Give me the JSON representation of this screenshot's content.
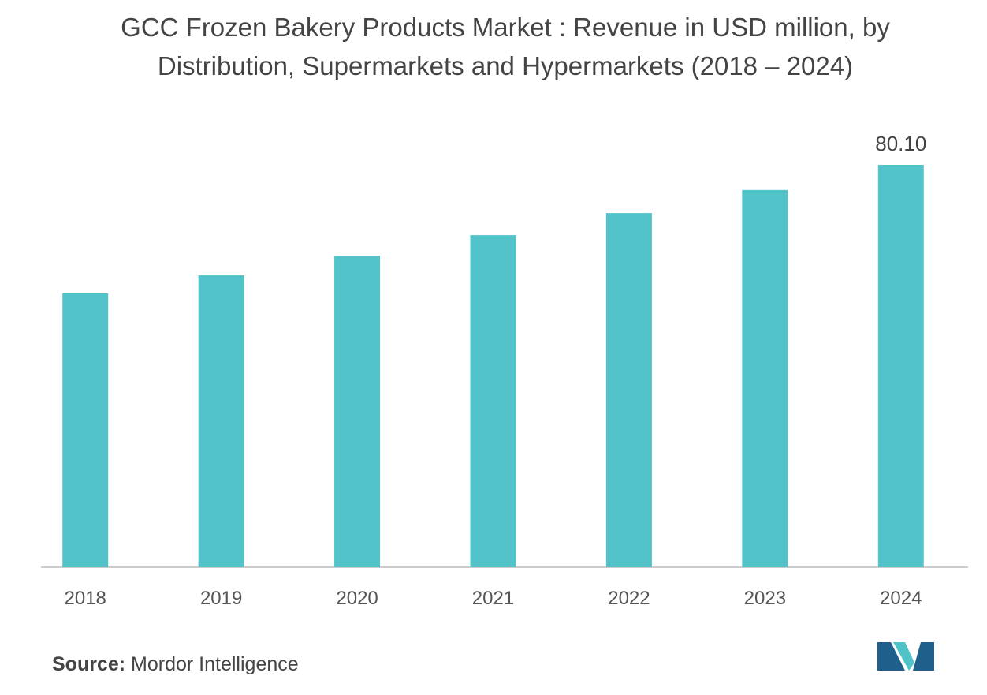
{
  "chart_data": {
    "type": "bar",
    "title": "GCC Frozen Bakery Products Market : Revenue in USD million, by Distribution, Supermarkets and Hypermarkets (2018 – 2024)",
    "categories": [
      "2018",
      "2019",
      "2020",
      "2021",
      "2022",
      "2023",
      "2024"
    ],
    "values": [
      54.5,
      58.1,
      62.0,
      66.1,
      70.5,
      75.1,
      80.1
    ],
    "value_labels": [
      null,
      null,
      null,
      null,
      null,
      null,
      "80.10"
    ],
    "color": "#52c3c9",
    "source": {
      "label": "Source:",
      "text": "Mordor Intelligence"
    }
  }
}
